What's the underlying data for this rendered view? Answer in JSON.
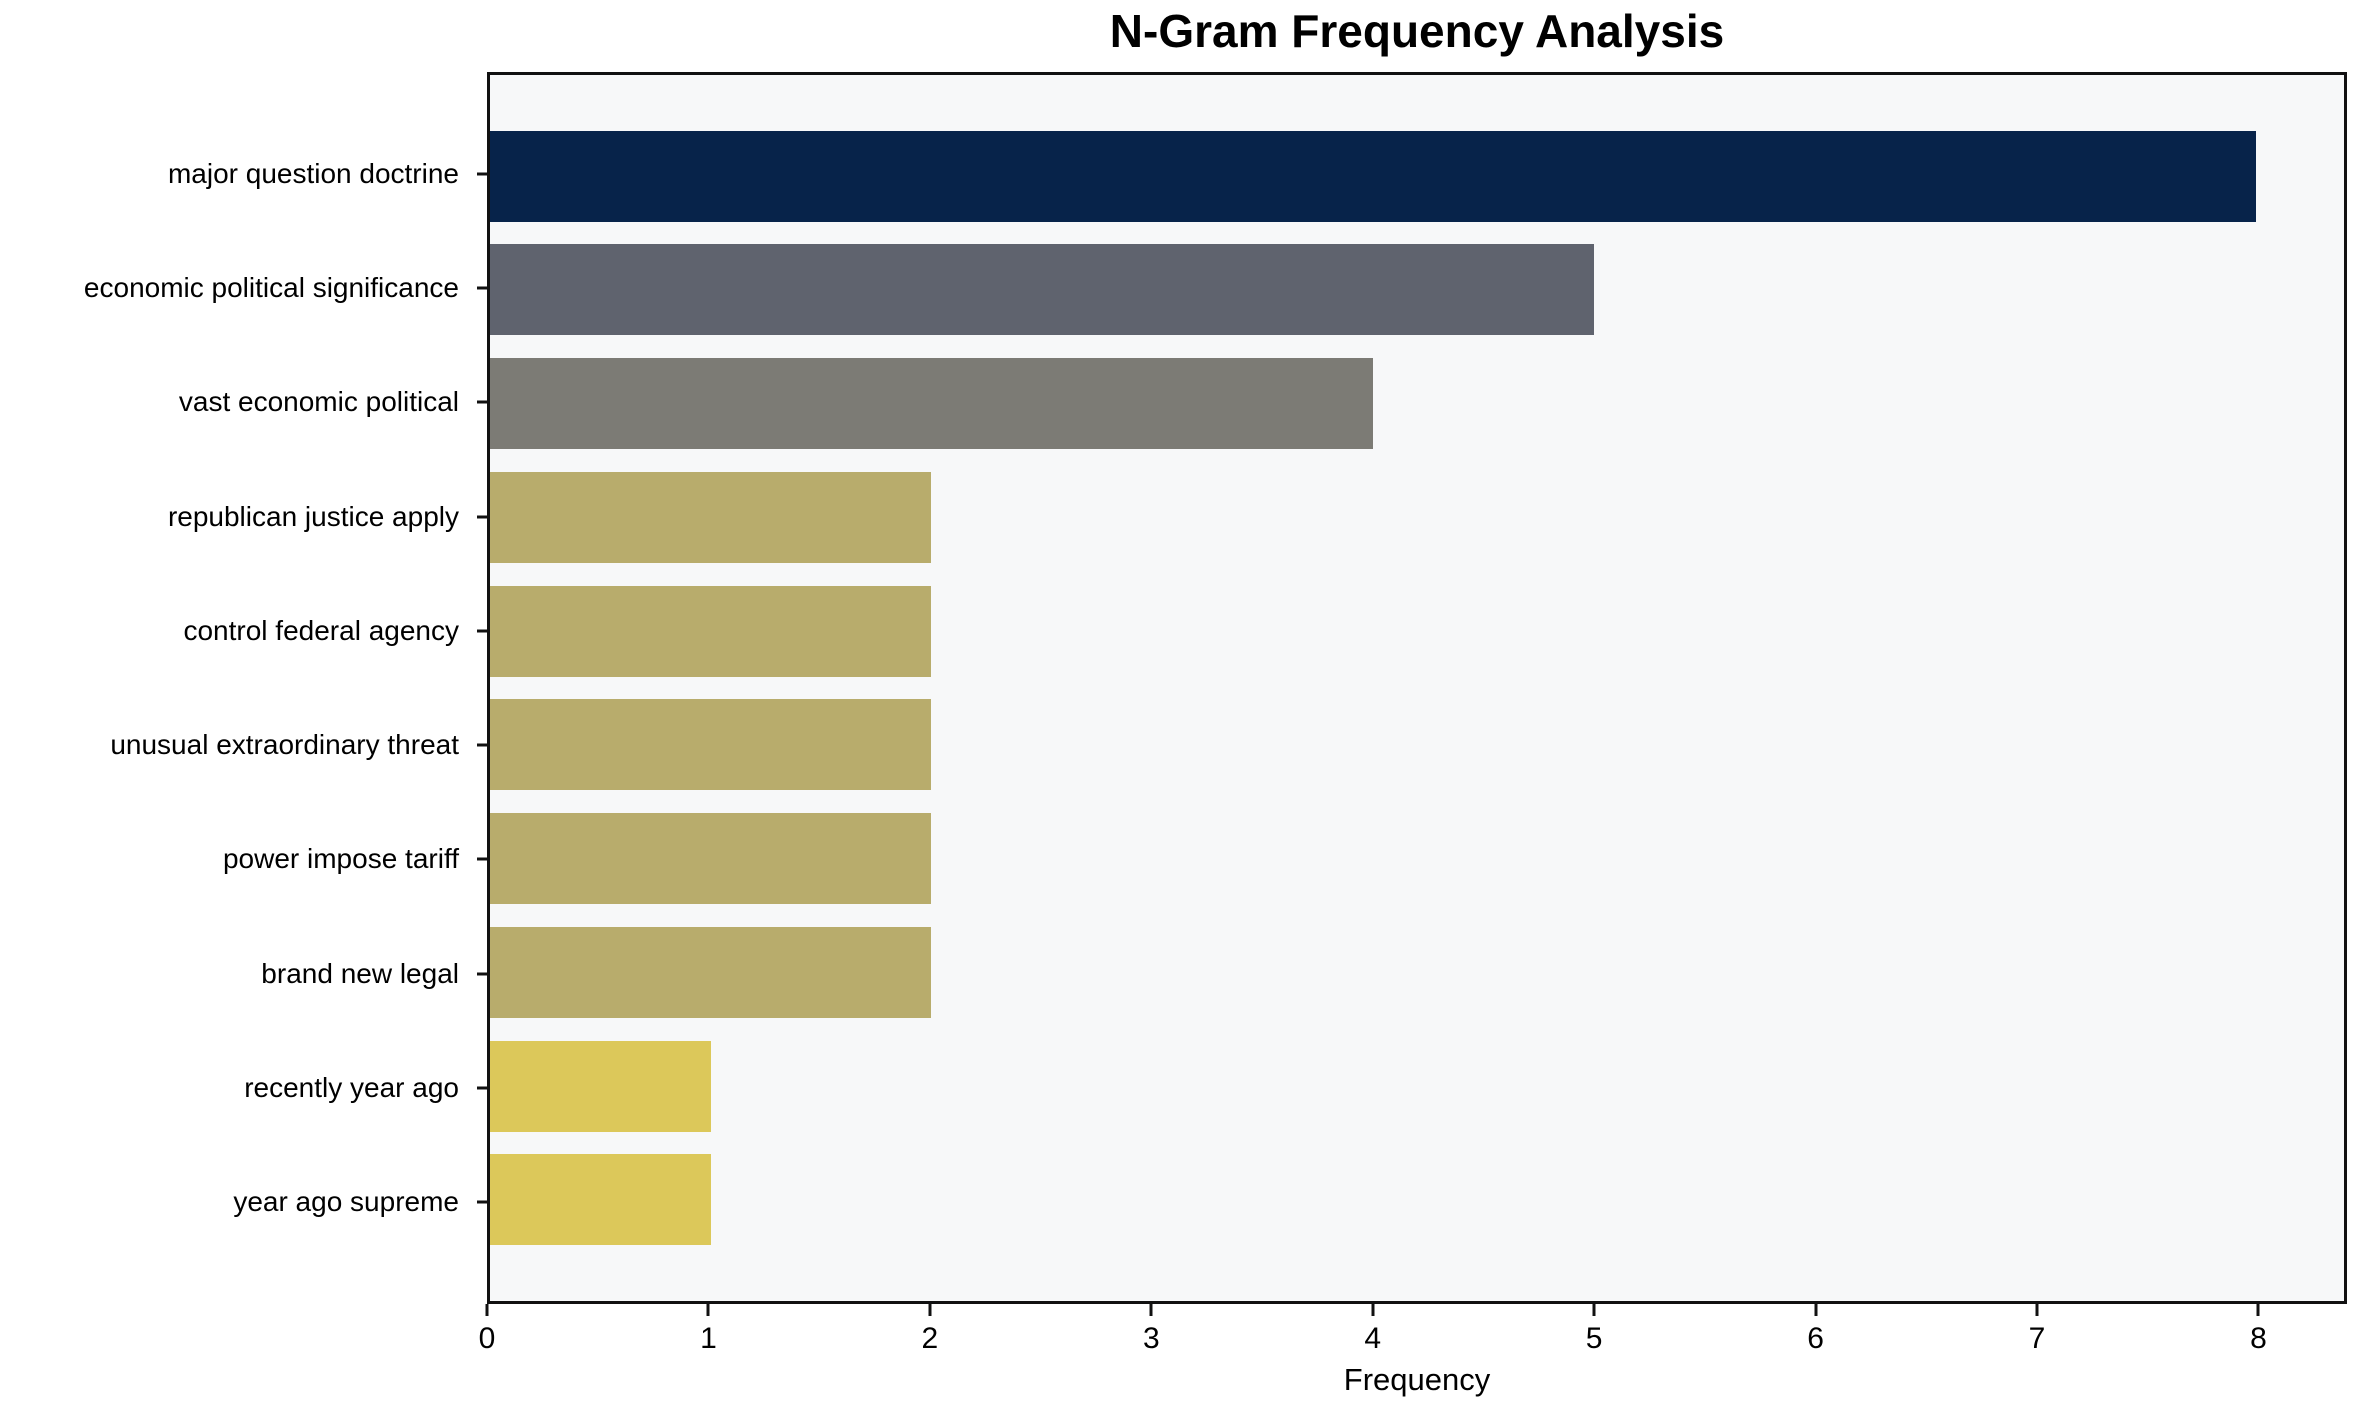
{
  "chart_data": {
    "type": "bar",
    "orientation": "horizontal",
    "title": "N-Gram Frequency Analysis",
    "xlabel": "Frequency",
    "ylabel": "",
    "categories": [
      "major question doctrine",
      "economic political significance",
      "vast economic political",
      "republican justice apply",
      "control federal agency",
      "unusual extraordinary threat",
      "power impose tariff",
      "brand new legal",
      "recently year ago",
      "year ago supreme"
    ],
    "values": [
      8,
      5,
      4,
      2,
      2,
      2,
      2,
      2,
      1,
      1
    ],
    "bar_colors": [
      "#07234a",
      "#5f636e",
      "#7c7b75",
      "#b8ac6c",
      "#b8ac6c",
      "#b8ac6c",
      "#b8ac6c",
      "#b8ac6c",
      "#dcc85a",
      "#dcc85a"
    ],
    "xticks": [
      "0",
      "1",
      "2",
      "3",
      "4",
      "5",
      "6",
      "7",
      "8"
    ],
    "xtick_values": [
      0,
      1,
      2,
      3,
      4,
      5,
      6,
      7,
      8
    ],
    "xlim": [
      0,
      8.4
    ],
    "bar_height_fraction": 0.8,
    "grid": false,
    "legend_position": "none",
    "colors": {
      "plot_background": "#f7f8f9",
      "figure_background": "#ffffff",
      "spine": "#111111",
      "text": "#000000"
    }
  }
}
